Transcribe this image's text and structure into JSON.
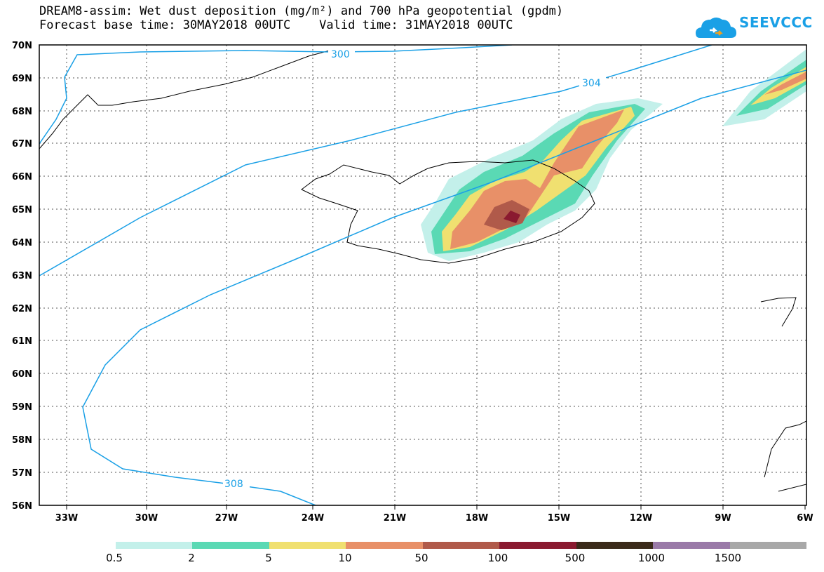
{
  "title": {
    "line1": "DREAM8-assim: Wet dust deposition (mg/m²) and 700 hPa geopotential (gpdm)",
    "line2": "Forecast base time: 30MAY2018 00UTC    Valid time: 31MAY2018 00UTC"
  },
  "logo": {
    "text": "SEEVCCC",
    "icon": "cloud-icon"
  },
  "axes": {
    "lat_labels": [
      "70N",
      "69N",
      "68N",
      "67N",
      "66N",
      "65N",
      "64N",
      "63N",
      "62N",
      "61N",
      "60N",
      "59N",
      "58N",
      "57N",
      "56N"
    ],
    "lon_labels": [
      "33W",
      "30W",
      "27W",
      "24W",
      "21W",
      "18W",
      "15W",
      "12W",
      "9W",
      "6W"
    ],
    "lat_range": [
      56,
      70
    ],
    "lon_range": [
      -34.4,
      -6
    ]
  },
  "contours": {
    "color": "#1aa0e6",
    "labels": [
      "300",
      "304",
      "308"
    ]
  },
  "legend": {
    "colors": [
      "#c3f0ea",
      "#5ad9b4",
      "#f0e070",
      "#e89068",
      "#b05a4a",
      "#8a1a30",
      "#3a2a1a",
      "#9a7aa8",
      "#a8a8a8"
    ],
    "labels": [
      "0.5",
      "2",
      "5",
      "10",
      "50",
      "100",
      "500",
      "1000",
      "1500"
    ]
  }
}
